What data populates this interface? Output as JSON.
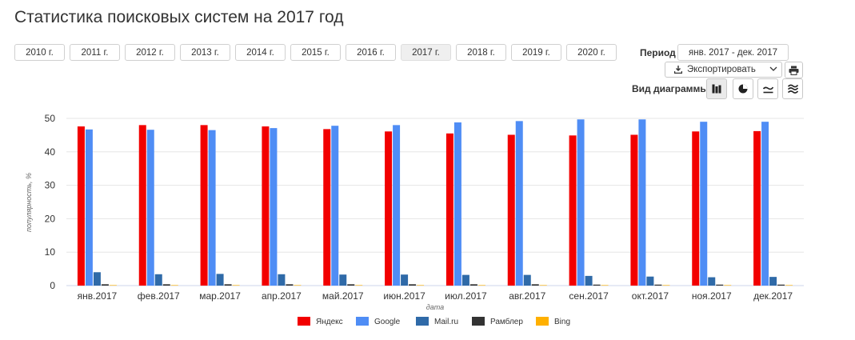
{
  "title": "Статистика поисковых систем на 2017 год",
  "years": [
    {
      "label": "2010 г.",
      "active": false
    },
    {
      "label": "2011 г.",
      "active": false
    },
    {
      "label": "2012 г.",
      "active": false
    },
    {
      "label": "2013 г.",
      "active": false
    },
    {
      "label": "2014 г.",
      "active": false
    },
    {
      "label": "2015 г.",
      "active": false
    },
    {
      "label": "2016 г.",
      "active": false
    },
    {
      "label": "2017 г.",
      "active": true
    },
    {
      "label": "2018 г.",
      "active": false
    },
    {
      "label": "2019 г.",
      "active": false
    },
    {
      "label": "2020 г.",
      "active": false
    }
  ],
  "period": {
    "label": "Период",
    "value": "янв. 2017 - дек. 2017"
  },
  "export": {
    "label": "Экспортировать",
    "icon": "download-icon"
  },
  "print": {
    "icon": "printer-icon"
  },
  "chart_type": {
    "label": "Вид диаграммы:",
    "buttons": [
      {
        "icon": "bar-chart-icon",
        "active": true
      },
      {
        "icon": "pie-chart-icon",
        "active": false
      },
      {
        "icon": "line-chart-icon",
        "active": false
      },
      {
        "icon": "area-chart-icon",
        "active": false
      }
    ]
  },
  "chart_data": {
    "type": "bar",
    "categories": [
      "янв.2017",
      "фев.2017",
      "мар.2017",
      "апр.2017",
      "май.2017",
      "июн.2017",
      "июл.2017",
      "авг.2017",
      "сен.2017",
      "окт.2017",
      "ноя.2017",
      "дек.2017"
    ],
    "series": [
      {
        "name": "Яндекс",
        "color": "#f20000",
        "values": [
          47.6,
          48.0,
          48.0,
          47.6,
          46.8,
          46.1,
          45.5,
          45.1,
          44.9,
          45.1,
          46.1,
          46.2
        ]
      },
      {
        "name": "Google",
        "color": "#4f8df5",
        "values": [
          46.7,
          46.6,
          46.5,
          47.1,
          47.8,
          48.0,
          48.8,
          49.2,
          49.7,
          49.7,
          49.0,
          49.0
        ]
      },
      {
        "name": "Mail.ru",
        "color": "#2f6aa8",
        "values": [
          4.0,
          3.4,
          3.5,
          3.4,
          3.3,
          3.3,
          3.2,
          3.2,
          2.9,
          2.7,
          2.5,
          2.6
        ]
      },
      {
        "name": "Рамблер",
        "color": "#333333",
        "values": [
          0.4,
          0.4,
          0.4,
          0.4,
          0.4,
          0.4,
          0.4,
          0.4,
          0.3,
          0.3,
          0.3,
          0.3
        ]
      },
      {
        "name": "Bing",
        "color": "#ffb000",
        "values": [
          0.15,
          0.15,
          0.15,
          0.15,
          0.15,
          0.15,
          0.15,
          0.15,
          0.15,
          0.15,
          0.15,
          0.15
        ]
      }
    ],
    "yticks": [
      0,
      10,
      20,
      30,
      40,
      50
    ],
    "ylim": [
      0,
      50
    ],
    "xlabel": "дата",
    "ylabel": "популярность, %",
    "grid": true,
    "legend": "bottom"
  }
}
